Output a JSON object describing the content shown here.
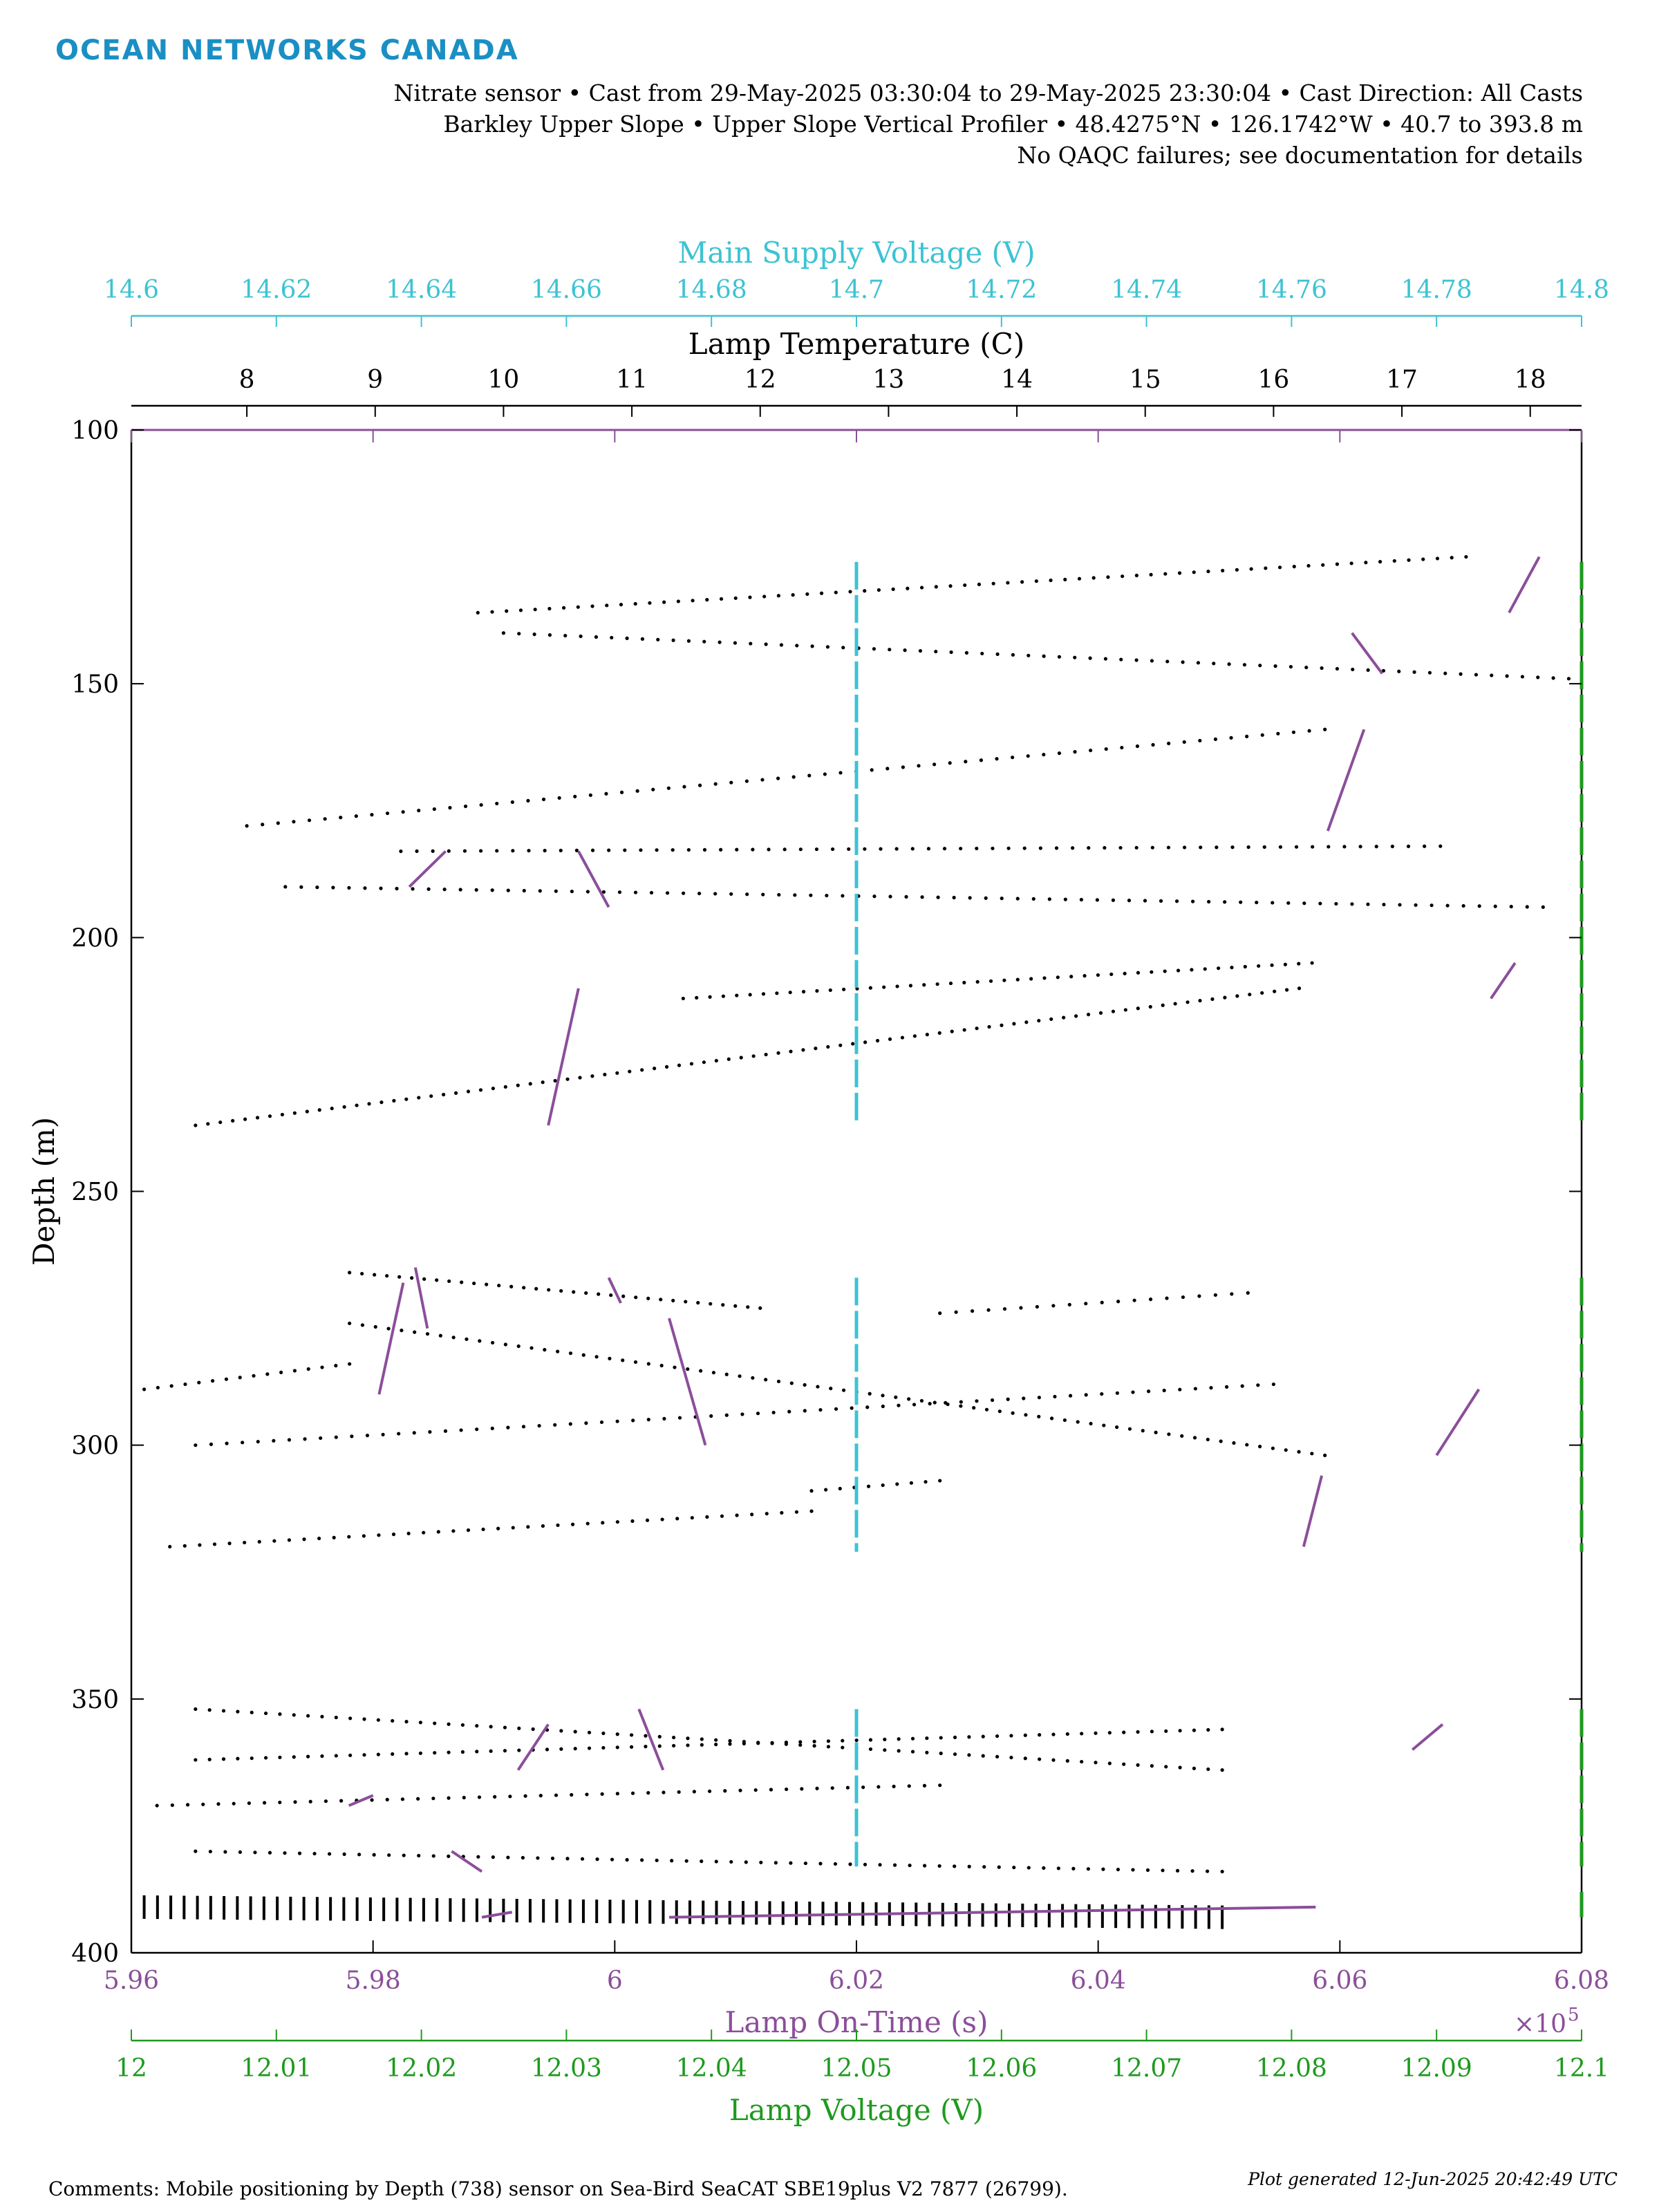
{
  "brand": {
    "name": "OCEAN NETWORKS CANADA",
    "color": "#1a8fc4"
  },
  "header": {
    "line1": "Nitrate sensor • Cast from 29-May-2025 03:30:04 to 29-May-2025 23:30:04 • Cast Direction: All Casts",
    "line2": "Barkley Upper Slope • Upper Slope Vertical Profiler • 48.4275°N • 126.1742°W • 40.7 to 393.8 m",
    "line3": "No QAQC failures; see documentation for details"
  },
  "footer": {
    "comment": "Comments: Mobile positioning by Depth (738) sensor on Sea-Bird SeaCAT SBE19plus V2 7877 (26799).",
    "generated": "Plot generated 12-Jun-2025 20:42:49 UTC"
  },
  "colors": {
    "voltage_supply": "#3cc3d3",
    "lamp_temperature": "#000000",
    "lamp_on_time": "#8b4e9a",
    "lamp_voltage": "#1e9a1e",
    "axis": "#000000"
  },
  "chart_data": {
    "type": "scatter",
    "y_axis": {
      "label": "Depth (m)",
      "range": [
        100,
        400
      ],
      "reversed": true,
      "ticks": [
        "100",
        "150",
        "200",
        "250",
        "300",
        "350",
        "400"
      ]
    },
    "axes": {
      "supply_voltage": {
        "label": "Main Supply Voltage (V)",
        "range": [
          14.6,
          14.8
        ],
        "ticks": [
          "14.6",
          "14.62",
          "14.64",
          "14.66",
          "14.68",
          "14.7",
          "14.72",
          "14.74",
          "14.76",
          "14.78",
          "14.8"
        ]
      },
      "lamp_temperature": {
        "label": "Lamp Temperature (C)",
        "range": [
          7.1,
          18.4
        ],
        "ticks": [
          "8",
          "9",
          "10",
          "11",
          "12",
          "13",
          "14",
          "15",
          "16",
          "17",
          "18"
        ]
      },
      "lamp_on_time": {
        "label": "Lamp On-Time (s)",
        "range": [
          5.96,
          6.08
        ],
        "ticks": [
          "5.96",
          "5.98",
          "6",
          "6.02",
          "6.04",
          "6.06",
          "6.08"
        ],
        "multiplier": "×10",
        "exponent": "5"
      },
      "lamp_voltage": {
        "label": "Lamp Voltage (V)",
        "range": [
          12.0,
          12.1
        ],
        "ticks": [
          "12",
          "12.01",
          "12.02",
          "12.03",
          "12.04",
          "12.05",
          "12.06",
          "12.07",
          "12.08",
          "12.09",
          "12.1"
        ]
      }
    },
    "series": [
      {
        "name": "Lamp Temperature (C)",
        "axis": "lamp_temperature",
        "segments": [
          {
            "from": [
              9.8,
              136
            ],
            "to": [
              17.5,
              125
            ],
            "n": 70
          },
          {
            "from": [
              10.0,
              140
            ],
            "to": [
              18.3,
              149
            ],
            "n": 70
          },
          {
            "from": [
              8.0,
              178
            ],
            "to": [
              16.4,
              159
            ],
            "n": 70
          },
          {
            "from": [
              9.2,
              183
            ],
            "to": [
              17.3,
              182
            ],
            "n": 66
          },
          {
            "from": [
              8.3,
              190
            ],
            "to": [
              18.1,
              194
            ],
            "n": 80
          },
          {
            "from": [
              11.4,
              212
            ],
            "to": [
              16.3,
              205
            ],
            "n": 48
          },
          {
            "from": [
              7.6,
              237
            ],
            "to": [
              16.2,
              210
            ],
            "n": 90
          },
          {
            "from": [
              8.8,
              266
            ],
            "to": [
              12.0,
              273
            ],
            "n": 34
          },
          {
            "from": [
              8.8,
              276
            ],
            "to": [
              16.4,
              302
            ],
            "n": 76
          },
          {
            "from": [
              7.2,
              289
            ],
            "to": [
              8.8,
              284
            ],
            "n": 16
          },
          {
            "from": [
              7.6,
              300
            ],
            "to": [
              16.0,
              288
            ],
            "n": 70
          },
          {
            "from": [
              13.4,
              274
            ],
            "to": [
              15.8,
              270
            ],
            "n": 20
          },
          {
            "from": [
              7.4,
              320
            ],
            "to": [
              12.4,
              313
            ],
            "n": 44
          },
          {
            "from": [
              12.4,
              309
            ],
            "to": [
              13.4,
              307
            ],
            "n": 10
          },
          {
            "from": [
              7.6,
              352
            ],
            "to": [
              15.6,
              364
            ],
            "n": 74
          },
          {
            "from": [
              7.6,
              362
            ],
            "to": [
              15.6,
              356
            ],
            "n": 74
          },
          {
            "from": [
              7.3,
              371
            ],
            "to": [
              13.4,
              367
            ],
            "n": 52
          },
          {
            "from": [
              7.6,
              380
            ],
            "to": [
              15.6,
              384
            ],
            "n": 70
          },
          {
            "from": [
              7.2,
              391
            ],
            "to": [
              15.6,
              393
            ],
            "n": 82
          }
        ]
      },
      {
        "name": "Lamp On-Time (s)",
        "axis": "lamp_on_time",
        "segments": [
          {
            "from": [
              6.074,
              136
            ],
            "to": [
              6.0765,
              125
            ]
          },
          {
            "from": [
              6.061,
              140
            ],
            "to": [
              6.0635,
              148
            ]
          },
          {
            "from": [
              6.059,
              179
            ],
            "to": [
              6.062,
              159
            ]
          },
          {
            "from": [
              5.983,
              190
            ],
            "to": [
              5.986,
              183
            ]
          },
          {
            "from": [
              5.997,
              183
            ],
            "to": [
              5.9995,
              194
            ]
          },
          {
            "from": [
              5.9945,
              237
            ],
            "to": [
              5.997,
              210
            ]
          },
          {
            "from": [
              6.0725,
              212
            ],
            "to": [
              6.0745,
              205
            ]
          },
          {
            "from": [
              5.9805,
              290
            ],
            "to": [
              5.9825,
              268
            ]
          },
          {
            "from": [
              5.9835,
              265
            ],
            "to": [
              5.9845,
              277
            ]
          },
          {
            "from": [
              5.9995,
              267
            ],
            "to": [
              6.0005,
              272
            ]
          },
          {
            "from": [
              6.0045,
              275
            ],
            "to": [
              6.0075,
              300
            ]
          },
          {
            "from": [
              6.068,
              302
            ],
            "to": [
              6.0715,
              289
            ]
          },
          {
            "from": [
              6.057,
              320
            ],
            "to": [
              6.0585,
              306
            ]
          },
          {
            "from": [
              5.992,
              364
            ],
            "to": [
              5.9945,
              355
            ]
          },
          {
            "from": [
              6.002,
              352
            ],
            "to": [
              6.004,
              364
            ]
          },
          {
            "from": [
              6.066,
              360
            ],
            "to": [
              6.0685,
              355
            ]
          },
          {
            "from": [
              5.978,
              371
            ],
            "to": [
              5.98,
              369
            ]
          },
          {
            "from": [
              5.9865,
              380
            ],
            "to": [
              5.989,
              384
            ]
          },
          {
            "from": [
              5.989,
              393
            ],
            "to": [
              5.9915,
              392
            ]
          },
          {
            "from": [
              6.0045,
              393
            ],
            "to": [
              6.058,
              391
            ]
          }
        ]
      },
      {
        "name": "Main Supply Voltage (V)",
        "axis": "supply_voltage",
        "segments": [
          {
            "from": [
              14.7,
              126
            ],
            "to": [
              14.7,
              236
            ]
          },
          {
            "from": [
              14.7,
              267
            ],
            "to": [
              14.7,
              321
            ]
          },
          {
            "from": [
              14.7,
              352
            ],
            "to": [
              14.7,
              383
            ]
          }
        ]
      },
      {
        "name": "Lamp Voltage (V)",
        "axis": "lamp_voltage",
        "segments": [
          {
            "from": [
              12.1,
              126
            ],
            "to": [
              12.1,
              236
            ]
          },
          {
            "from": [
              12.1,
              267
            ],
            "to": [
              12.1,
              321
            ]
          },
          {
            "from": [
              12.1,
              352
            ],
            "to": [
              12.1,
              383
            ]
          },
          {
            "from": [
              12.1,
              388
            ],
            "to": [
              12.1,
              393
            ]
          }
        ]
      }
    ]
  }
}
